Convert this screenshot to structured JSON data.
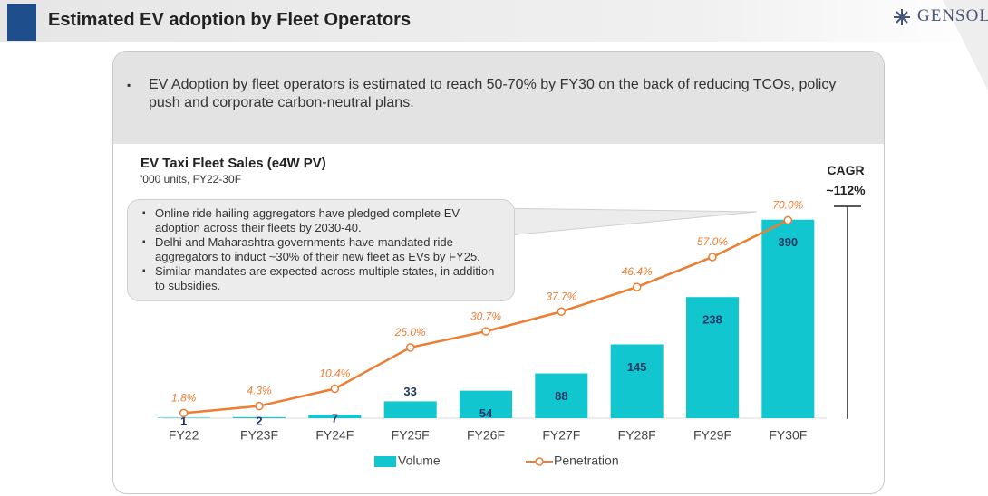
{
  "header": {
    "title": "Estimated EV adoption by Fleet Operators",
    "logo": "GENSOL"
  },
  "summary": "EV Adoption by fleet operators is estimated to reach 50-70% by FY30 on the back of reducing TCOs, policy push and corporate carbon-neutral plans.",
  "callout": [
    "Online ride hailing aggregators have pledged complete EV adoption across their fleets by 2030-40.",
    "Delhi and Maharashtra governments have mandated ride aggregators to induct ~30% of their new fleet as EVs by FY25.",
    "Similar mandates are expected across multiple states, in addition to subsidies."
  ],
  "cagr": {
    "label": "CAGR",
    "value": "~112%"
  },
  "chart_data": {
    "type": "bar",
    "title": "EV Taxi Fleet Sales (e4W PV)",
    "subtitle": "'000 units, FY22-30F",
    "categories": [
      "FY22",
      "FY23F",
      "FY24F",
      "FY25F",
      "FY26F",
      "FY27F",
      "FY28F",
      "FY29F",
      "FY30F"
    ],
    "series": [
      {
        "name": "Volume",
        "type": "bar",
        "color": "#12c6cf",
        "values": [
          1,
          2,
          7,
          33,
          54,
          88,
          145,
          238,
          390
        ]
      },
      {
        "name": "Penetration",
        "type": "line",
        "axis": "y2",
        "color": "#ed7d31",
        "values": [
          1.8,
          4.3,
          10.4,
          25.0,
          30.7,
          37.7,
          46.4,
          57.0,
          70.0
        ],
        "value_labels": [
          "1.8%",
          "4.3%",
          "10.4%",
          "25.0%",
          "30.7%",
          "37.7%",
          "46.4%",
          "57.0%",
          "70.0%"
        ]
      }
    ],
    "ylim": [
      0,
      450
    ],
    "y2lim": [
      0,
      81
    ],
    "legend": "bottom"
  }
}
